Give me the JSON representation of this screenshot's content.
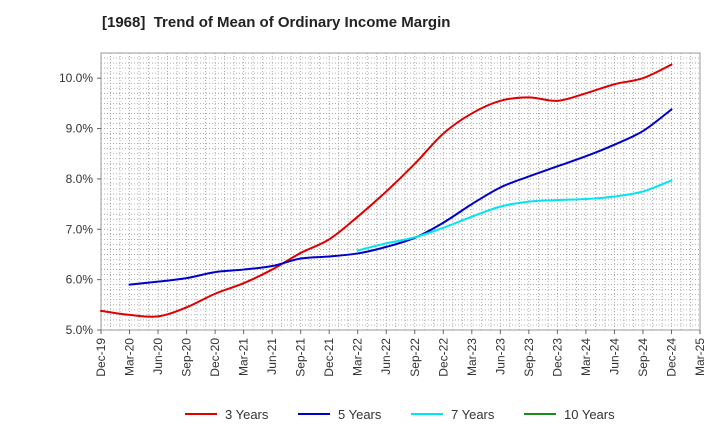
{
  "chart_data": {
    "type": "line",
    "title": "[1968]  Trend of Mean of Ordinary Income Margin",
    "xlabel": "",
    "ylabel": "",
    "x_ticks": [
      "Dec-19",
      "Mar-20",
      "Jun-20",
      "Sep-20",
      "Dec-20",
      "Mar-21",
      "Jun-21",
      "Sep-21",
      "Dec-21",
      "Mar-22",
      "Jun-22",
      "Sep-22",
      "Dec-22",
      "Mar-23",
      "Jun-23",
      "Sep-23",
      "Dec-23",
      "Mar-24",
      "Jun-24",
      "Sep-24",
      "Dec-24",
      "Mar-25"
    ],
    "y_ticks": [
      "5.0%",
      "6.0%",
      "7.0%",
      "8.0%",
      "9.0%",
      "10.0%"
    ],
    "ylim": [
      5.0,
      10.5
    ],
    "grid": true,
    "legend_position": "bottom",
    "series": [
      {
        "name": "3 Years",
        "color": "#e00000",
        "points": [
          [
            "Dec-19",
            5.38
          ],
          [
            "Mar-20",
            5.3
          ],
          [
            "Jun-20",
            5.27
          ],
          [
            "Sep-20",
            5.45
          ],
          [
            "Dec-20",
            5.72
          ],
          [
            "Mar-21",
            5.93
          ],
          [
            "Jun-21",
            6.2
          ],
          [
            "Sep-21",
            6.53
          ],
          [
            "Dec-21",
            6.8
          ],
          [
            "Mar-22",
            7.25
          ],
          [
            "Jun-22",
            7.75
          ],
          [
            "Sep-22",
            8.3
          ],
          [
            "Dec-22",
            8.9
          ],
          [
            "Mar-23",
            9.3
          ],
          [
            "Jun-23",
            9.55
          ],
          [
            "Sep-23",
            9.62
          ],
          [
            "Dec-23",
            9.55
          ],
          [
            "Mar-24",
            9.7
          ],
          [
            "Jun-24",
            9.88
          ],
          [
            "Sep-24",
            10.0
          ],
          [
            "Dec-24",
            10.27
          ]
        ]
      },
      {
        "name": "5 Years",
        "color": "#0000cc",
        "points": [
          [
            "Mar-20",
            5.9
          ],
          [
            "Jun-20",
            5.96
          ],
          [
            "Sep-20",
            6.03
          ],
          [
            "Dec-20",
            6.15
          ],
          [
            "Mar-21",
            6.2
          ],
          [
            "Jun-21",
            6.27
          ],
          [
            "Sep-21",
            6.42
          ],
          [
            "Dec-21",
            6.46
          ],
          [
            "Mar-22",
            6.52
          ],
          [
            "Jun-22",
            6.65
          ],
          [
            "Sep-22",
            6.83
          ],
          [
            "Dec-22",
            7.13
          ],
          [
            "Mar-23",
            7.5
          ],
          [
            "Jun-23",
            7.83
          ],
          [
            "Sep-23",
            8.05
          ],
          [
            "Dec-23",
            8.25
          ],
          [
            "Mar-24",
            8.45
          ],
          [
            "Jun-24",
            8.68
          ],
          [
            "Sep-24",
            8.95
          ],
          [
            "Dec-24",
            9.38
          ]
        ]
      },
      {
        "name": "7 Years",
        "color": "#00e5ee",
        "points": [
          [
            "Mar-22",
            6.58
          ],
          [
            "Jun-22",
            6.72
          ],
          [
            "Sep-22",
            6.84
          ],
          [
            "Dec-22",
            7.03
          ],
          [
            "Mar-23",
            7.25
          ],
          [
            "Jun-23",
            7.45
          ],
          [
            "Sep-23",
            7.55
          ],
          [
            "Dec-23",
            7.58
          ],
          [
            "Mar-24",
            7.6
          ],
          [
            "Jun-24",
            7.65
          ],
          [
            "Sep-24",
            7.75
          ],
          [
            "Dec-24",
            7.97
          ]
        ]
      },
      {
        "name": "10 Years",
        "color": "#1a8c1a",
        "points": []
      }
    ]
  }
}
